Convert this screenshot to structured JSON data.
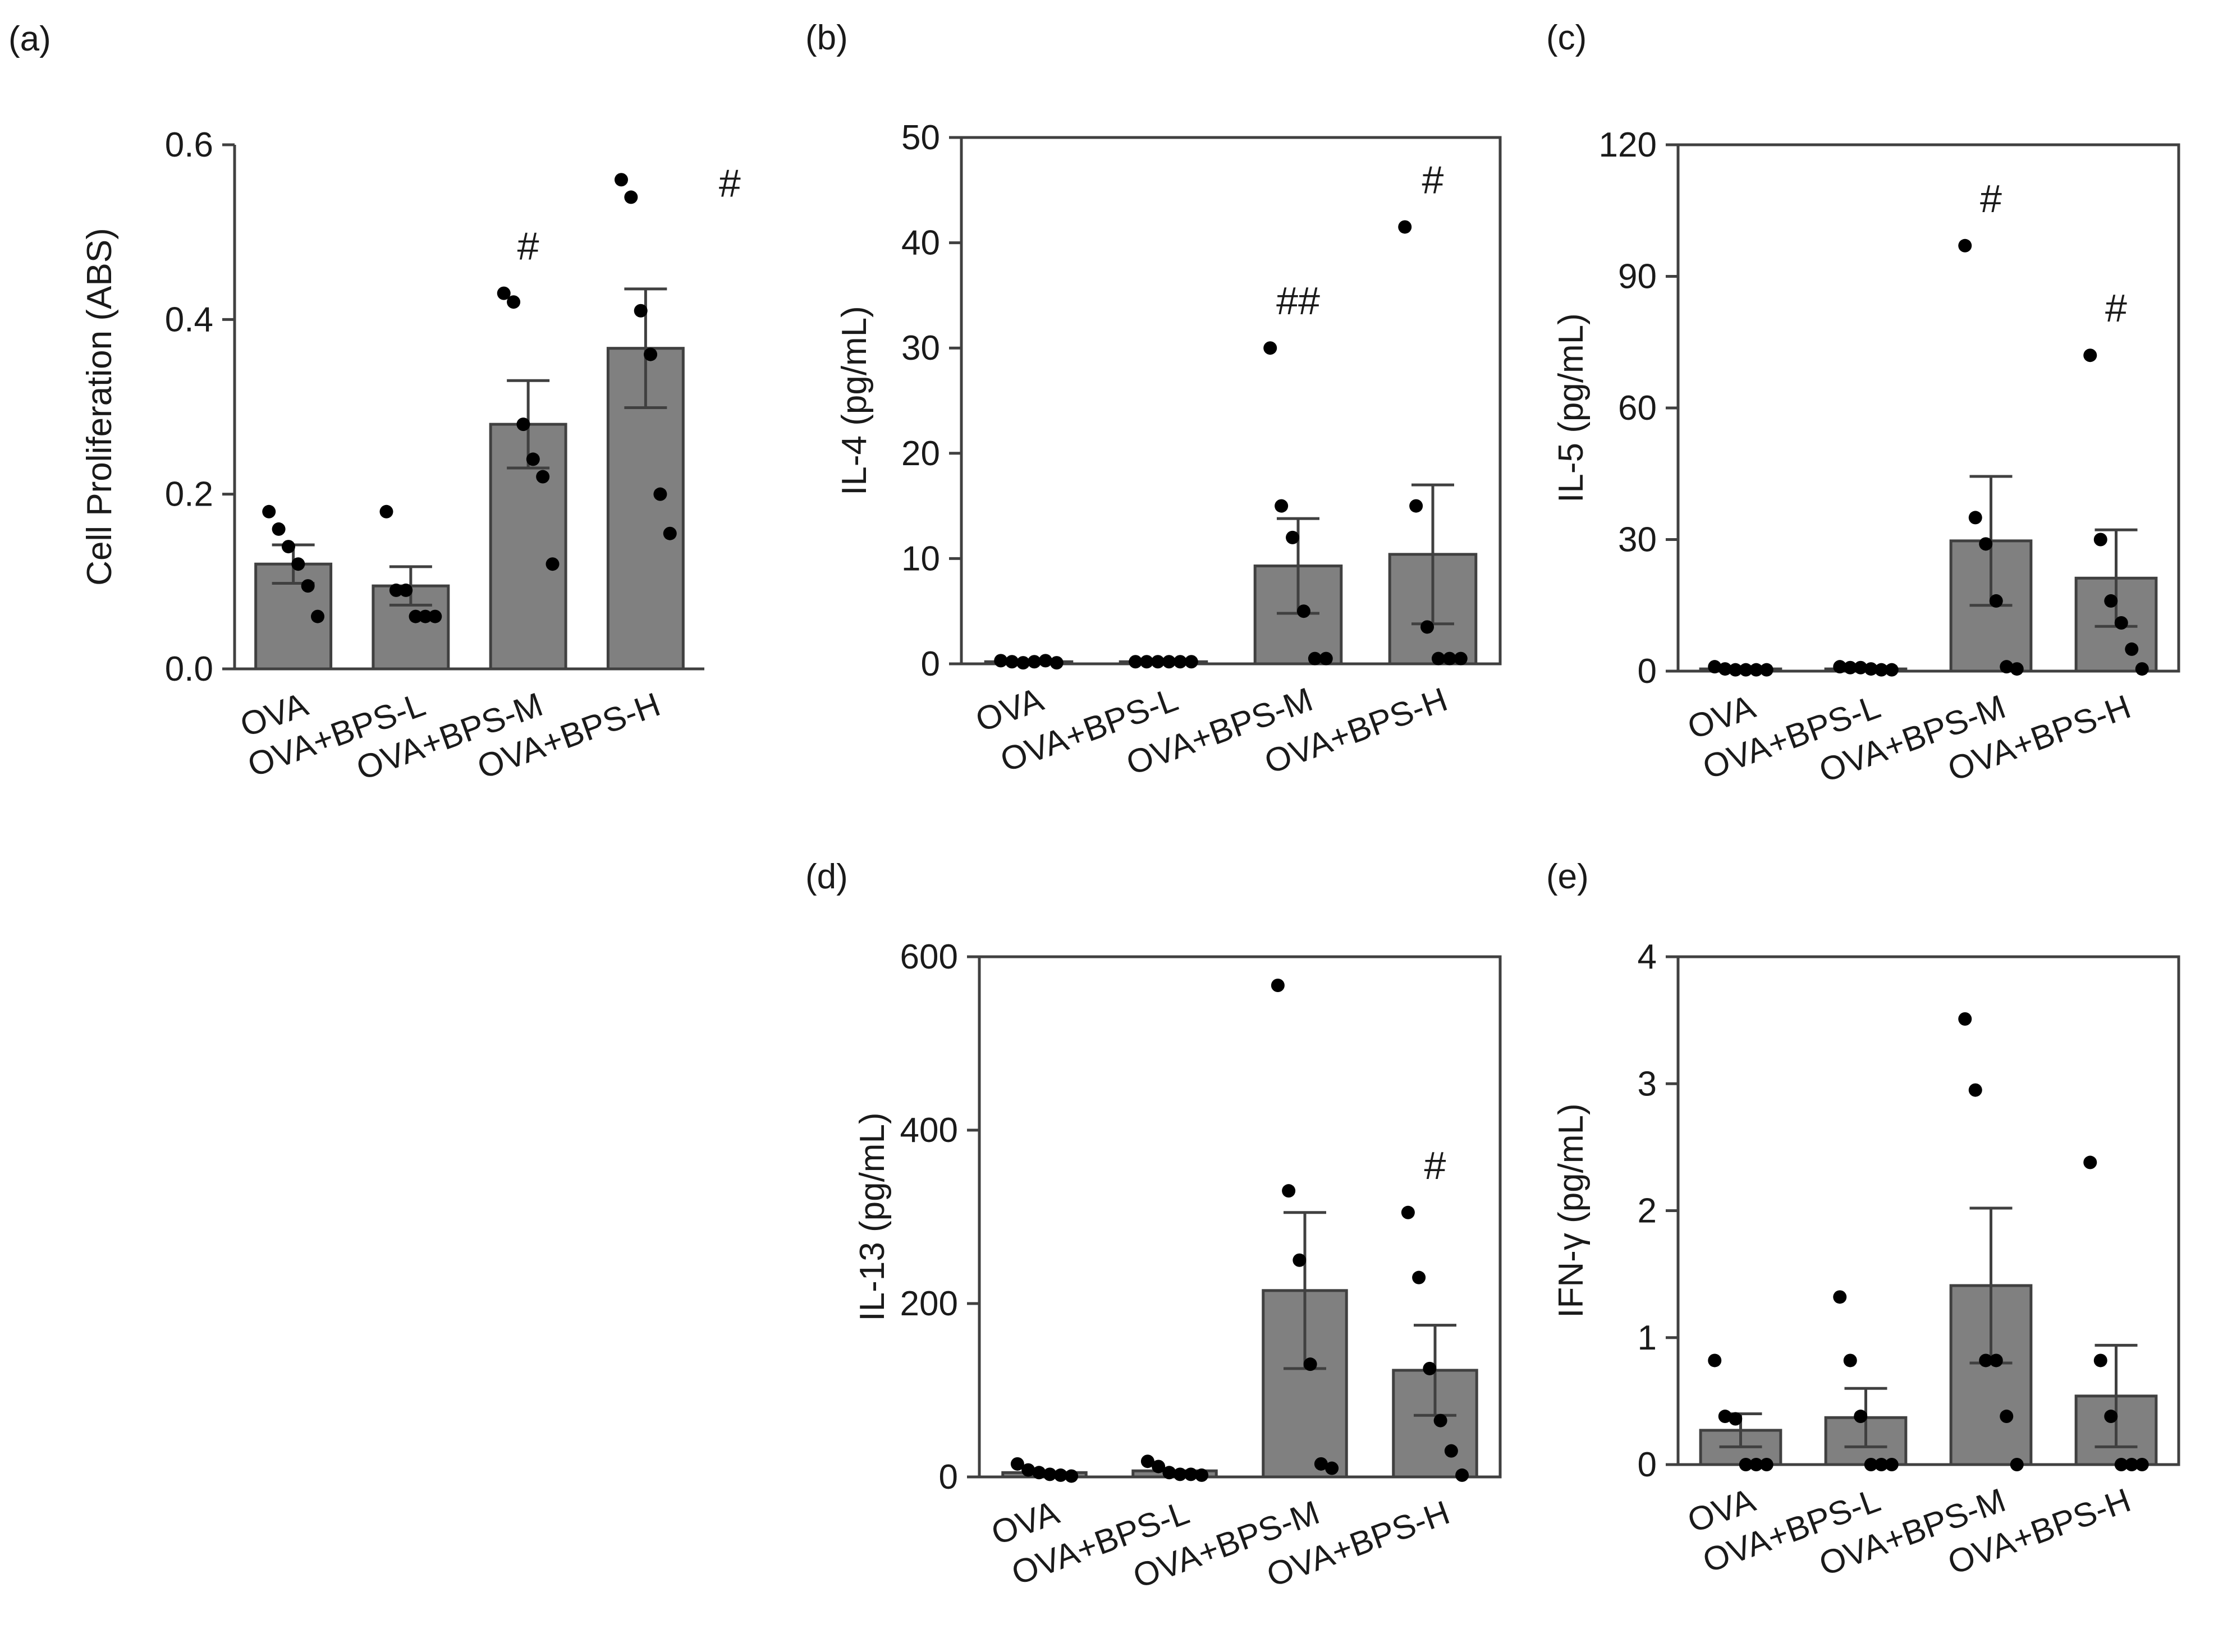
{
  "figure": {
    "background": "#ffffff",
    "bar_color": "#808080",
    "dot_color": "#000000"
  },
  "chart_data": [
    {
      "panel": "(a)",
      "type": "bar",
      "categories": [
        "OVA",
        "OVA+BPS-L",
        "OVA+BPS-M",
        "OVA+BPS-H"
      ],
      "values": [
        0.12,
        0.095,
        0.28,
        0.367
      ],
      "sem": [
        0.022,
        0.022,
        0.05,
        0.068
      ],
      "points": [
        [
          0.18,
          0.16,
          0.14,
          0.12,
          0.095,
          0.06
        ],
        [
          0.18,
          0.09,
          0.09,
          0.06,
          0.06,
          0.06
        ],
        [
          0.43,
          0.42,
          0.28,
          0.24,
          0.22,
          0.12
        ],
        [
          0.56,
          0.54,
          0.41,
          0.36,
          0.2,
          0.155
        ]
      ],
      "annotations": [
        "",
        "",
        "#",
        "#"
      ],
      "ylabel": "Cell Proliferation (ABS)",
      "ylim": [
        0,
        0.6
      ],
      "yticks": [
        0.0,
        0.2,
        0.4,
        0.6
      ],
      "ytick_labels": [
        "0.0",
        "0.2",
        "0.4",
        "0.6"
      ],
      "frame": "open"
    },
    {
      "panel": "(b)",
      "type": "bar",
      "categories": [
        "OVA",
        "OVA+BPS-L",
        "OVA+BPS-M",
        "OVA+BPS-H"
      ],
      "values": [
        0.2,
        0.2,
        9.3,
        10.4
      ],
      "sem": [
        0,
        0,
        4.5,
        6.6
      ],
      "points": [
        [
          0.3,
          0.2,
          0.1,
          0.2,
          0.3,
          0.1
        ],
        [
          0.2,
          0.2,
          0.2,
          0.2,
          0.2,
          0.2
        ],
        [
          30,
          15,
          12,
          5,
          0.5,
          0.5
        ],
        [
          41.5,
          15,
          3.5,
          0.5,
          0.5,
          0.5
        ]
      ],
      "annotations": [
        "",
        "",
        "##",
        "#"
      ],
      "ylabel": "IL-4 (pg/mL)",
      "ylim": [
        0,
        50
      ],
      "yticks": [
        0,
        10,
        20,
        30,
        40,
        50
      ],
      "ytick_labels": [
        "0",
        "10",
        "20",
        "30",
        "40",
        "50"
      ],
      "frame": "box"
    },
    {
      "panel": "(c)",
      "type": "bar",
      "categories": [
        "OVA",
        "OVA+BPS-L",
        "OVA+BPS-M",
        "OVA+BPS-H"
      ],
      "values": [
        0.5,
        0.5,
        29.7,
        21.2
      ],
      "sem": [
        0,
        0,
        14.7,
        11
      ],
      "points": [
        [
          1,
          0.5,
          0.3,
          0.3,
          0.3,
          0.3
        ],
        [
          1,
          0.8,
          0.8,
          0.5,
          0.3,
          0.3
        ],
        [
          97,
          35,
          29,
          16,
          1,
          0.5
        ],
        [
          72,
          30,
          16,
          11,
          5,
          0.5
        ]
      ],
      "annotations": [
        "",
        "",
        "#",
        "#"
      ],
      "ylabel": "IL-5 (pg/mL)",
      "ylim": [
        0,
        120
      ],
      "yticks": [
        0,
        30,
        60,
        90,
        120
      ],
      "ytick_labels": [
        "0",
        "30",
        "60",
        "90",
        "120"
      ],
      "frame": "box"
    },
    {
      "panel": "(d)",
      "type": "bar",
      "categories": [
        "OVA",
        "OVA+BPS-L",
        "OVA+BPS-M",
        "OVA+BPS-H"
      ],
      "values": [
        5,
        7,
        215,
        123
      ],
      "sem": [
        0,
        0,
        90,
        52
      ],
      "points": [
        [
          15,
          8,
          5,
          3,
          2,
          1
        ],
        [
          18,
          12,
          5,
          3,
          3,
          2
        ],
        [
          567,
          330,
          250,
          130,
          15,
          10
        ],
        [
          305,
          230,
          125,
          65,
          30,
          2
        ]
      ],
      "annotations": [
        "",
        "",
        "",
        "#"
      ],
      "ylabel": "IL-13 (pg/mL)",
      "ylim": [
        0,
        600
      ],
      "yticks": [
        0,
        200,
        400,
        600
      ],
      "ytick_labels": [
        "0",
        "200",
        "400",
        "600"
      ],
      "frame": "box"
    },
    {
      "panel": "(e)",
      "type": "bar",
      "categories": [
        "OVA",
        "OVA+BPS-L",
        "OVA+BPS-M",
        "OVA+BPS-H"
      ],
      "values": [
        0.27,
        0.37,
        1.41,
        0.54
      ],
      "sem": [
        0.13,
        0.23,
        0.61,
        0.4
      ],
      "points": [
        [
          0.82,
          0.38,
          0.36,
          0,
          0,
          0
        ],
        [
          1.32,
          0.82,
          0.38,
          0,
          0,
          0
        ],
        [
          3.51,
          2.95,
          0.82,
          0.82,
          0.38,
          0
        ],
        [
          2.38,
          0.82,
          0.38,
          0,
          0,
          0
        ]
      ],
      "annotations": [
        "",
        "",
        "",
        ""
      ],
      "ylabel": "IFN-γ (pg/mL)",
      "ylim": [
        0,
        4
      ],
      "yticks": [
        0,
        1,
        2,
        3,
        4
      ],
      "ytick_labels": [
        "0",
        "1",
        "2",
        "3",
        "4"
      ],
      "frame": "box"
    }
  ]
}
